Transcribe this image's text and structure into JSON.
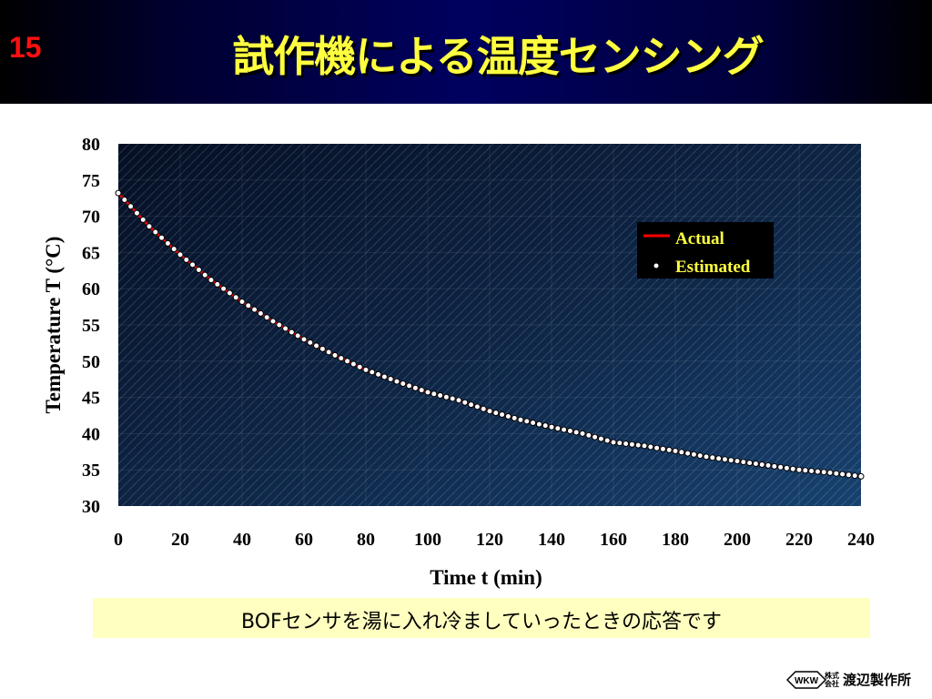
{
  "slide": {
    "number": "15",
    "title": "試作機による温度センシング",
    "caption": "BOFセンサを湯に入れ冷ましていったときの応答です"
  },
  "company": {
    "logo_text": "WKW",
    "kk_top": "株式",
    "kk_bottom": "会社",
    "name": "渡辺製作所"
  },
  "colors": {
    "header": "#00005a",
    "title": "#ffff40",
    "slide_number": "#ff1010",
    "plot_bg": "#0f2a4e",
    "actual": "#ff0000",
    "estimated_fill": "#ffffff",
    "caption_bg": "#ffffc0"
  },
  "chart_data": {
    "type": "line",
    "xlabel": "Time t  (min)",
    "ylabel": "Temperature T  (°C)",
    "xlim": [
      0,
      240
    ],
    "ylim": [
      30,
      80
    ],
    "xticks": [
      0,
      20,
      40,
      60,
      80,
      100,
      120,
      140,
      160,
      180,
      200,
      220,
      240
    ],
    "yticks": [
      30,
      35,
      40,
      45,
      50,
      55,
      60,
      65,
      70,
      75,
      80
    ],
    "legend_position": "top-right",
    "series": [
      {
        "name": "Actual",
        "style": "line",
        "x": [
          0,
          10,
          20,
          30,
          40,
          50,
          60,
          70,
          80,
          90,
          100,
          110,
          120,
          130,
          140,
          150,
          160,
          170,
          180,
          190,
          200,
          210,
          220,
          230,
          240
        ],
        "y": [
          73.2,
          68.6,
          64.7,
          61.2,
          58.2,
          55.5,
          53.0,
          50.8,
          48.8,
          47.2,
          45.7,
          44.6,
          43.1,
          41.9,
          40.9,
          40.0,
          38.8,
          38.3,
          37.6,
          36.8,
          36.2,
          35.6,
          35.0,
          34.6,
          34.1
        ]
      },
      {
        "name": "Estimated",
        "style": "markers",
        "x": [
          0,
          10,
          20,
          30,
          40,
          50,
          60,
          70,
          80,
          90,
          100,
          110,
          120,
          130,
          140,
          150,
          160,
          170,
          180,
          190,
          200,
          210,
          220,
          230,
          240
        ],
        "y": [
          73.2,
          68.6,
          64.7,
          61.2,
          58.2,
          55.5,
          53.0,
          50.8,
          48.8,
          47.2,
          45.7,
          44.6,
          43.1,
          41.9,
          40.9,
          40.0,
          38.8,
          38.3,
          37.6,
          36.8,
          36.2,
          35.6,
          35.0,
          34.6,
          34.1
        ],
        "marker_spacing_min": 2
      }
    ]
  }
}
